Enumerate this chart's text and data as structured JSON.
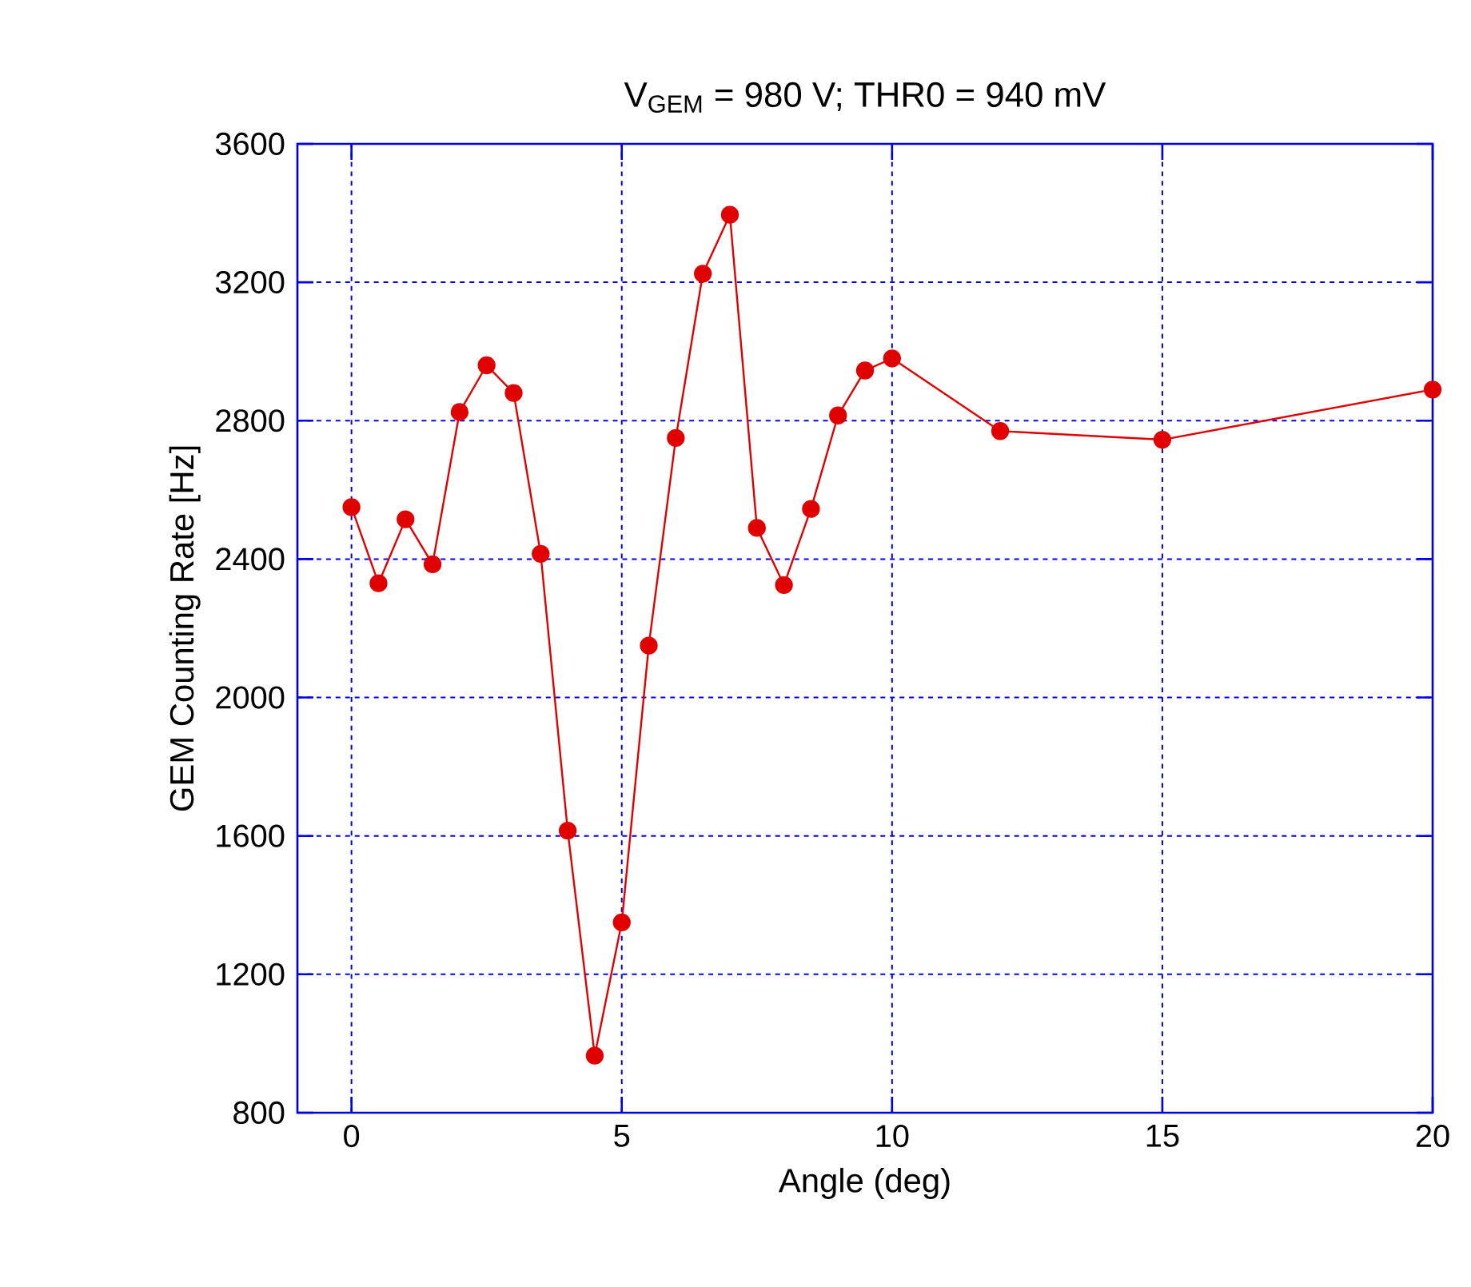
{
  "chart_data": {
    "type": "line",
    "title": "V$_{GEM}$ = 980 V; THR0 = 940 mV",
    "xlabel": "Angle (deg)",
    "ylabel": "GEM Counting Rate [Hz]",
    "x": [
      0,
      0.5,
      1,
      1.5,
      2,
      2.5,
      3,
      3.5,
      4,
      4.5,
      5,
      5.5,
      6,
      6.5,
      7,
      7.5,
      8,
      8.5,
      9,
      9.5,
      10,
      12,
      15,
      20
    ],
    "series": [
      {
        "color": "#e00000",
        "values": [
          2550,
          2330,
          2515,
          2385,
          2825,
          2960,
          2880,
          2415,
          1615,
          965,
          1350,
          2150,
          2750,
          3225,
          3395,
          2490,
          2325,
          2545,
          2815,
          2945,
          2980,
          2770,
          2745,
          2890
        ]
      }
    ],
    "xlim": [
      -1,
      20
    ],
    "ylim": [
      800,
      3600
    ],
    "xticks": [
      0,
      5,
      10,
      15,
      20
    ],
    "yticks": [
      800,
      1200,
      1600,
      2000,
      2400,
      2800,
      3200,
      3600
    ],
    "grid": true,
    "marker": "circle",
    "line_style": "solid"
  }
}
